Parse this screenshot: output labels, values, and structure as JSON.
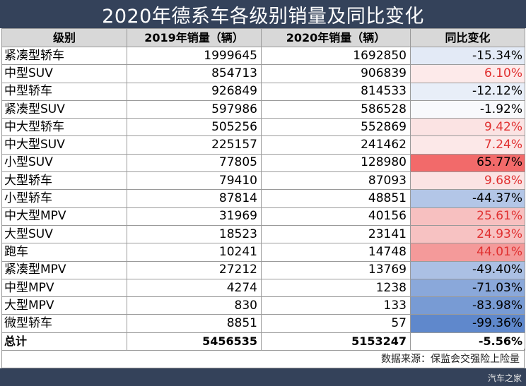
{
  "title": "2020年德系车各级别销量及同比变化",
  "headers": [
    "级别",
    "2019年销量（辆）",
    "2020年销量（辆）",
    "同比变化"
  ],
  "rows": [
    {
      "name": "紧凑型轿车",
      "y2019": "1999645",
      "y2020": "1692850",
      "change": "-15.34%",
      "bg": "#e3eaf6",
      "color": "#000000"
    },
    {
      "name": "中型SUV",
      "y2019": "854713",
      "y2020": "906839",
      "change": "6.10%",
      "bg": "#fdeaea",
      "color": "#e03030"
    },
    {
      "name": "中型轿车",
      "y2019": "926849",
      "y2020": "814533",
      "change": "-12.12%",
      "bg": "#e8eef8",
      "color": "#000000"
    },
    {
      "name": "紧凑型SUV",
      "y2019": "597986",
      "y2020": "586528",
      "change": "-1.92%",
      "bg": "#f8f9fc",
      "color": "#000000"
    },
    {
      "name": "中大型轿车",
      "y2019": "505256",
      "y2020": "552869",
      "change": "9.42%",
      "bg": "#fbe3e3",
      "color": "#e03030"
    },
    {
      "name": "中大型SUV",
      "y2019": "225157",
      "y2020": "241462",
      "change": "7.24%",
      "bg": "#fce8e8",
      "color": "#e03030"
    },
    {
      "name": "小型SUV",
      "y2019": "77805",
      "y2020": "128980",
      "change": "65.77%",
      "bg": "#f26a6a",
      "color": "#000000"
    },
    {
      "name": "大型轿车",
      "y2019": "79410",
      "y2020": "87093",
      "change": "9.68%",
      "bg": "#fbe3e3",
      "color": "#e03030"
    },
    {
      "name": "小型轿车",
      "y2019": "87814",
      "y2020": "48851",
      "change": "-44.37%",
      "bg": "#b3c6e7",
      "color": "#000000"
    },
    {
      "name": "中大型MPV",
      "y2019": "31969",
      "y2020": "40156",
      "change": "25.61%",
      "bg": "#f7c0c0",
      "color": "#e03030"
    },
    {
      "name": "大型SUV",
      "y2019": "18523",
      "y2020": "23141",
      "change": "24.93%",
      "bg": "#f7c2c2",
      "color": "#e03030"
    },
    {
      "name": "跑车",
      "y2019": "10241",
      "y2020": "14748",
      "change": "44.01%",
      "bg": "#f49a9a",
      "color": "#e03030"
    },
    {
      "name": "紧凑型MPV",
      "y2019": "27212",
      "y2020": "13769",
      "change": "-49.40%",
      "bg": "#abc0e4",
      "color": "#000000"
    },
    {
      "name": "中型MPV",
      "y2019": "4274",
      "y2020": "1238",
      "change": "-71.03%",
      "bg": "#8aa8da",
      "color": "#000000"
    },
    {
      "name": "大型MPV",
      "y2019": "830",
      "y2020": "133",
      "change": "-83.98%",
      "bg": "#789bd4",
      "color": "#000000"
    },
    {
      "name": "微型轿车",
      "y2019": "8851",
      "y2020": "57",
      "change": "-99.36%",
      "bg": "#5f88cc",
      "color": "#000000"
    }
  ],
  "total": {
    "name": "总计",
    "y2019": "5456535",
    "y2020": "5153247",
    "change": "-5.56%"
  },
  "source": "数据来源：保监会交强险上险量",
  "watermark": "汽车之家"
}
